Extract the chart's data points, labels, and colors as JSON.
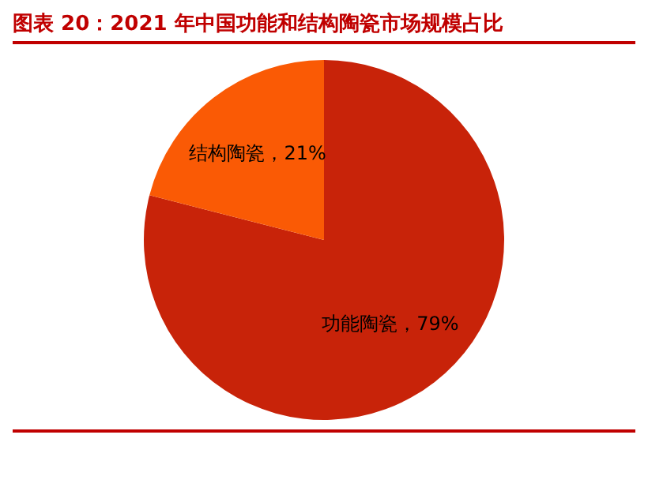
{
  "chart_data": {
    "type": "pie",
    "title": "图表 20：2021 年中国功能和结构陶瓷市场规模占比",
    "categories": [
      "功能陶瓷",
      "结构陶瓷"
    ],
    "values": [
      79,
      21
    ],
    "colors": [
      "#c82309",
      "#fa5a05"
    ],
    "value_labels": [
      "79%",
      "21%"
    ],
    "legend": false
  }
}
